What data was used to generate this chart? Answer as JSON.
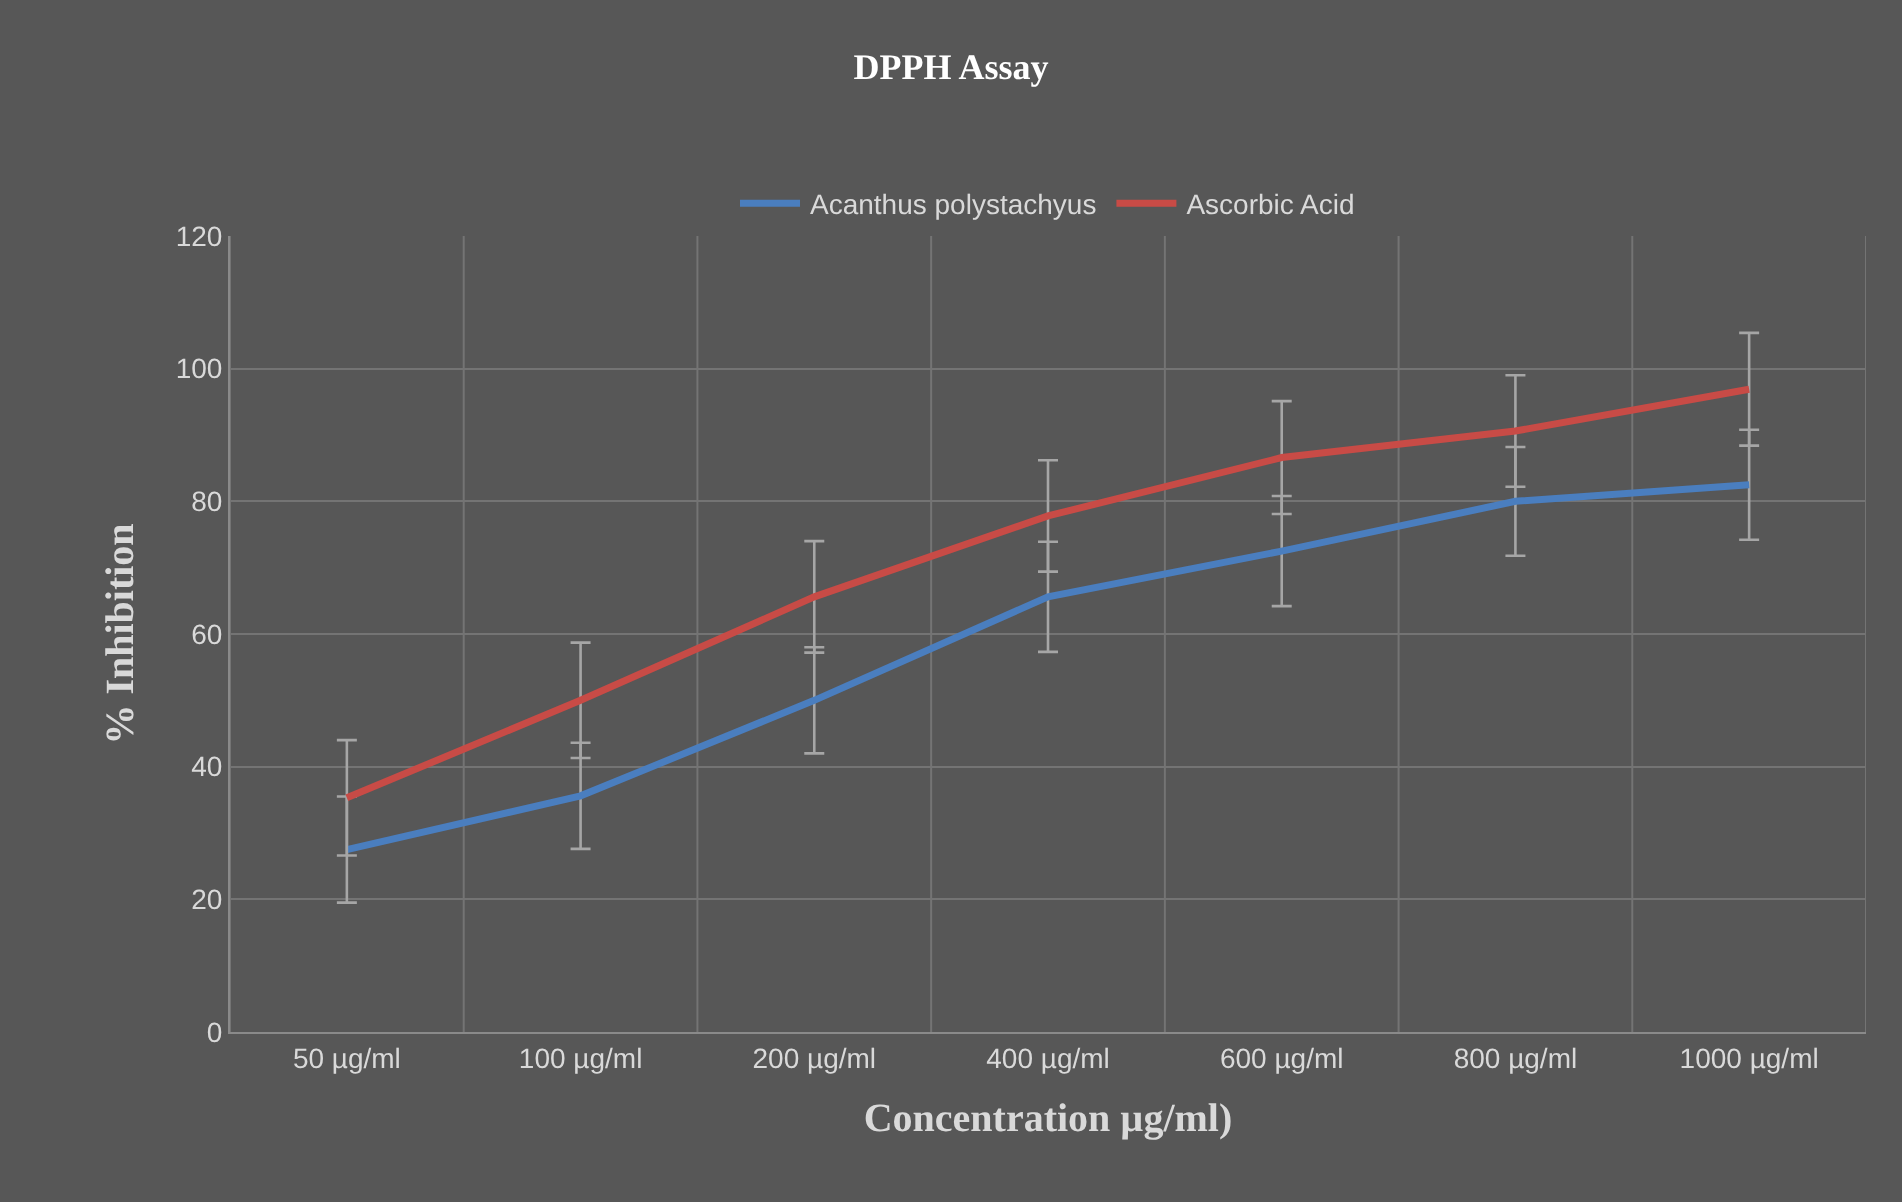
{
  "chart_data": {
    "type": "line",
    "title": "DPPH Assay",
    "xlabel": "Concentration µg/ml)",
    "ylabel": "% Inhibition",
    "categories": [
      "50 µg/ml",
      "100 µg/ml",
      "200 µg/ml",
      "400 µg/ml",
      "600 µg/ml",
      "800 µg/ml",
      "1000 µg/ml"
    ],
    "series": [
      {
        "name": "Acanthus polystachyus",
        "color": "#4a7ebf",
        "values": [
          27.5,
          35.6,
          50,
          65.6,
          72.5,
          80,
          82.5
        ],
        "errors": [
          8,
          8,
          8,
          8.3,
          8.3,
          8.2,
          8.3
        ]
      },
      {
        "name": "Ascorbic Acid",
        "color": "#c84b46",
        "values": [
          35.3,
          50,
          65.6,
          77.8,
          86.6,
          90.6,
          96.9
        ],
        "errors": [
          8.7,
          8.7,
          8.4,
          8.4,
          8.5,
          8.4,
          8.5
        ]
      }
    ],
    "ylim": [
      0,
      120
    ],
    "yticks": [
      0,
      20,
      40,
      60,
      80,
      100,
      120
    ],
    "grid": true,
    "legend": "top",
    "marker": "none",
    "line_style": "solid"
  }
}
